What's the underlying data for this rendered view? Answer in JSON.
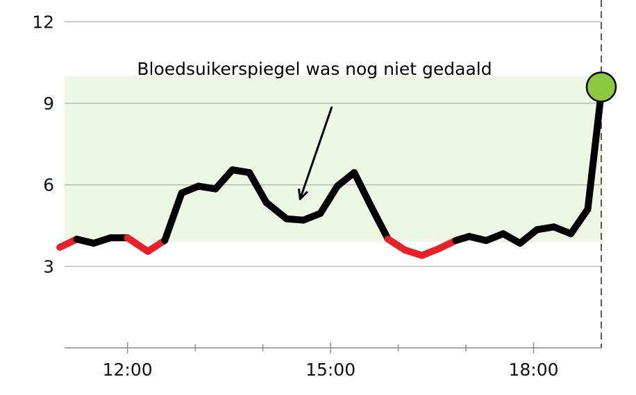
{
  "chart_data": {
    "type": "line",
    "title": "",
    "xlabel": "",
    "ylabel": "",
    "unit_x": "hours",
    "xlim": [
      11.07,
      19.0
    ],
    "ylim": [
      0,
      12.8
    ],
    "x_ticks": [
      {
        "value": 12,
        "label": "12:00"
      },
      {
        "value": 15,
        "label": "15:00"
      },
      {
        "value": 18,
        "label": "18:00"
      }
    ],
    "x_minor_ticks": [
      13,
      14,
      16,
      17
    ],
    "y_ticks": [
      {
        "value": 3,
        "label": "3"
      },
      {
        "value": 6,
        "label": "6"
      },
      {
        "value": 9,
        "label": "9"
      },
      {
        "value": 12,
        "label": "12"
      }
    ],
    "target_range": {
      "low": 3.9,
      "high": 10,
      "color": "#eef7e4"
    },
    "colors": {
      "in_range": "#000000",
      "low": "#e8202a",
      "gridline": "#b8b8b8",
      "current_marker": "#8dc63f"
    },
    "series": [
      {
        "points": [
          [
            11.0,
            3.7
          ],
          [
            11.25,
            4.0
          ],
          [
            11.5,
            3.85
          ],
          [
            11.75,
            4.05
          ],
          [
            12.0,
            4.05
          ],
          [
            12.3,
            3.55
          ],
          [
            12.55,
            3.95
          ],
          [
            12.8,
            5.7
          ],
          [
            13.05,
            5.95
          ],
          [
            13.3,
            5.85
          ],
          [
            13.55,
            6.55
          ],
          [
            13.8,
            6.45
          ],
          [
            14.05,
            5.35
          ],
          [
            14.35,
            4.75
          ],
          [
            14.6,
            4.7
          ],
          [
            14.85,
            4.95
          ],
          [
            15.1,
            5.95
          ],
          [
            15.35,
            6.45
          ],
          [
            15.6,
            5.2
          ],
          [
            15.85,
            4.0
          ],
          [
            16.1,
            3.6
          ],
          [
            16.35,
            3.4
          ],
          [
            16.6,
            3.65
          ],
          [
            16.85,
            3.95
          ],
          [
            17.05,
            4.1
          ],
          [
            17.3,
            3.95
          ],
          [
            17.55,
            4.2
          ],
          [
            17.8,
            3.85
          ],
          [
            18.05,
            4.35
          ],
          [
            18.3,
            4.45
          ],
          [
            18.55,
            4.2
          ],
          [
            18.8,
            5.1
          ],
          [
            19.0,
            9.4
          ]
        ]
      }
    ],
    "current_value_marker": {
      "x": 19.0,
      "y": 9.6
    },
    "annotations": [
      {
        "text": "Bloedsuikerspiegel was nog niet gedaald",
        "target": {
          "x": 14.55,
          "y": 5.4
        }
      }
    ]
  }
}
